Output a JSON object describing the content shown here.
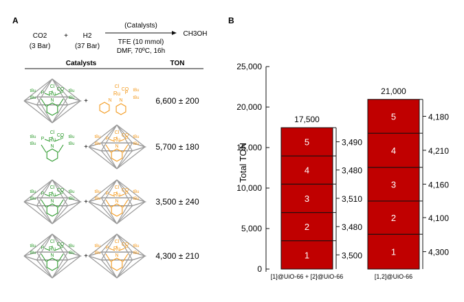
{
  "panel_a": {
    "label": "A",
    "reaction": {
      "reactant1": "CO2",
      "reactant1_pressure": "(3 Bar)",
      "plus": "+",
      "reactant2": "H2",
      "reactant2_pressure": "(37 Bar)",
      "arrow_top": "(Catalysts)",
      "arrow_bottom_line1": "TFE (10 mmol)",
      "arrow_bottom_line2": "DMF, 70ºC, 16h",
      "product": "CH3OH"
    },
    "table": {
      "header_catalysts": "Catalysts",
      "header_ton": "TON",
      "rows": [
        {
          "ton": "6,600 ± 200",
          "left": "caged-green",
          "right": "free-orange"
        },
        {
          "ton": "5,700 ± 180",
          "left": "free-green",
          "right": "caged-orange"
        },
        {
          "ton": "3,500 ± 240",
          "left": "caged-green",
          "right": "caged-orange"
        },
        {
          "ton": "4,300 ± 210",
          "left": "caged-green",
          "right": "caged-orange"
        }
      ],
      "plus": "+"
    },
    "structure_labels": {
      "metal": "Ru",
      "cl": "Cl",
      "co": "CO",
      "p": "P",
      "n": "N",
      "tbu": "tBu"
    },
    "colors": {
      "green": "#2e9a2e",
      "orange": "#f39a1e",
      "cage": "#9a9a9a"
    }
  },
  "panel_b": {
    "label": "B",
    "chart_data": {
      "type": "bar",
      "stacked": true,
      "ylabel": "Total TON",
      "ylim": [
        0,
        25000
      ],
      "yticks": [
        "0",
        "5,000",
        "10,000",
        "15,000",
        "20,000",
        "25,000"
      ],
      "categories": [
        "[1]@UiO-66 + [2]@UiO-66",
        "[1,2]@UiO-66"
      ],
      "totals": [
        "17,500",
        "21,000"
      ],
      "series": [
        {
          "name": "1",
          "values": [
            3500,
            4300
          ],
          "labels": [
            "3,500",
            "4,300"
          ]
        },
        {
          "name": "2",
          "values": [
            3480,
            4100
          ],
          "labels": [
            "3,480",
            "4,100"
          ]
        },
        {
          "name": "3",
          "values": [
            3510,
            4160
          ],
          "labels": [
            "3,510",
            "4,160"
          ]
        },
        {
          "name": "4",
          "values": [
            3480,
            4210
          ],
          "labels": [
            "3,480",
            "4,210"
          ]
        },
        {
          "name": "5",
          "values": [
            3490,
            4180
          ],
          "labels": [
            "3,490",
            "4,180"
          ]
        }
      ],
      "bar_color": "#c00000",
      "grid": false
    }
  }
}
